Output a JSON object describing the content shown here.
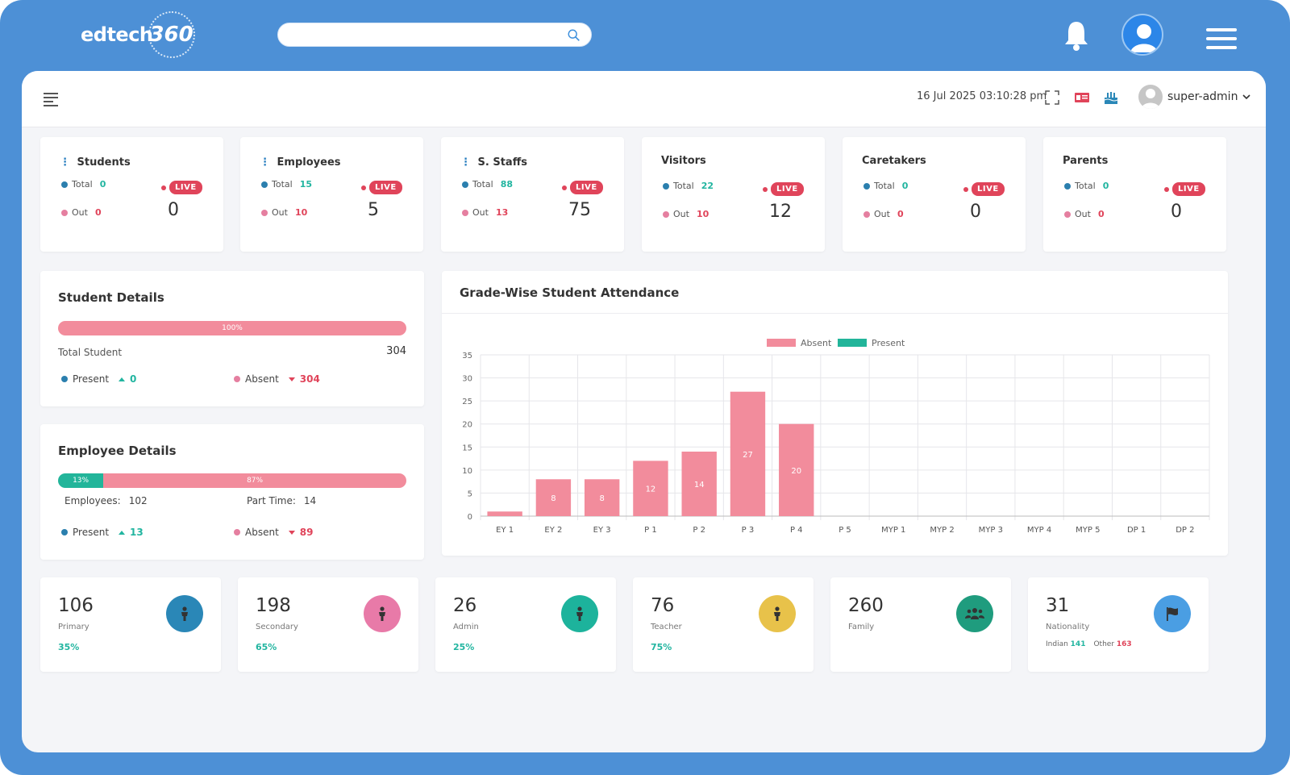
{
  "header": {
    "logo_text": "edtech",
    "logo_num": "360",
    "search": {
      "value": "",
      "placeholder": ""
    }
  },
  "subbar": {
    "datetime": "16 Jul 2025 03:10:28 pm",
    "username": "super-admin"
  },
  "stats": [
    {
      "title": "Students",
      "has_dots": true,
      "total_label": "Total",
      "total": "0",
      "out_label": "Out",
      "out": "0",
      "live_label": "LIVE",
      "live_count": "0"
    },
    {
      "title": "Employees",
      "has_dots": true,
      "total_label": "Total",
      "total": "15",
      "out_label": "Out",
      "out": "10",
      "live_label": "LIVE",
      "live_count": "5"
    },
    {
      "title": "S. Staffs",
      "has_dots": true,
      "total_label": "Total",
      "total": "88",
      "out_label": "Out",
      "out": "13",
      "live_label": "LIVE",
      "live_count": "75"
    },
    {
      "title": "Visitors",
      "has_dots": false,
      "total_label": "Total",
      "total": "22",
      "out_label": "Out",
      "out": "10",
      "live_label": "LIVE",
      "live_count": "12"
    },
    {
      "title": "Caretakers",
      "has_dots": false,
      "total_label": "Total",
      "total": "0",
      "out_label": "Out",
      "out": "0",
      "live_label": "LIVE",
      "live_count": "0"
    },
    {
      "title": "Parents",
      "has_dots": false,
      "total_label": "Total",
      "total": "0",
      "out_label": "Out",
      "out": "0",
      "live_label": "LIVE",
      "live_count": "0"
    }
  ],
  "student_details": {
    "title": "Student Details",
    "bar_label": "100%",
    "bar_fraction": 1.0,
    "total_label": "Total Student",
    "total_value": "304",
    "present_label": "Present",
    "present_value": "0",
    "absent_label": "Absent",
    "absent_value": "304"
  },
  "employee_details": {
    "title": "Employee Details",
    "teal_label": "13%",
    "teal_fraction": 0.13,
    "pink_label": "87%",
    "employees_label": "Employees:",
    "employees_value": "102",
    "parttime_label": "Part Time:",
    "parttime_value": "14",
    "present_label": "Present",
    "present_value": "13",
    "absent_label": "Absent",
    "absent_value": "89"
  },
  "chart_title": "Grade-Wise Student Attendance",
  "chart_data": {
    "type": "bar",
    "title": "Grade-Wise Student Attendance",
    "categories": [
      "EY 1",
      "EY 2",
      "EY 3",
      "P 1",
      "P 2",
      "P 3",
      "P 4",
      "P 5",
      "MYP 1",
      "MYP 2",
      "MYP 3",
      "MYP 4",
      "MYP 5",
      "DP 1",
      "DP 2"
    ],
    "series": [
      {
        "name": "Absent",
        "color": "#f28c9c",
        "values": [
          1,
          8,
          8,
          12,
          14,
          27,
          20,
          0,
          0,
          0,
          0,
          0,
          0,
          0,
          0
        ],
        "labels": [
          "",
          "8",
          "8",
          "12",
          "14",
          "27",
          "20",
          "",
          "",
          "",
          "",
          "",
          "",
          "",
          ""
        ]
      },
      {
        "name": "Present",
        "color": "#22b59a",
        "values": [
          0,
          0,
          0,
          0,
          0,
          0,
          0,
          0,
          0,
          0,
          0,
          0,
          0,
          0,
          0
        ]
      }
    ],
    "ylim": [
      0,
      35
    ],
    "yticks": [
      0,
      5,
      10,
      15,
      20,
      25,
      30,
      35
    ],
    "grid": true,
    "legend": "top-center"
  },
  "bottom_cards": [
    {
      "value": "106",
      "label": "Primary",
      "pct": "35%",
      "icon": "person-icon",
      "color": "#2a87b7"
    },
    {
      "value": "198",
      "label": "Secondary",
      "pct": "65%",
      "icon": "person-icon",
      "color": "#e87aa8"
    },
    {
      "value": "26",
      "label": "Admin",
      "pct": "25%",
      "icon": "person-icon",
      "color": "#1db39c"
    },
    {
      "value": "76",
      "label": "Teacher",
      "pct": "75%",
      "icon": "person-icon",
      "color": "#e8c24a"
    },
    {
      "value": "260",
      "label": "Family",
      "pct": "",
      "icon": "group-icon",
      "color": "#1f9c7e"
    },
    {
      "value": "31",
      "label": "Nationality",
      "pct": "",
      "icon": "flag-icon",
      "color": "#4a9ee3",
      "nat_indian_label": "Indian",
      "nat_indian": "141",
      "nat_other_label": "Other",
      "nat_other": "163"
    }
  ]
}
